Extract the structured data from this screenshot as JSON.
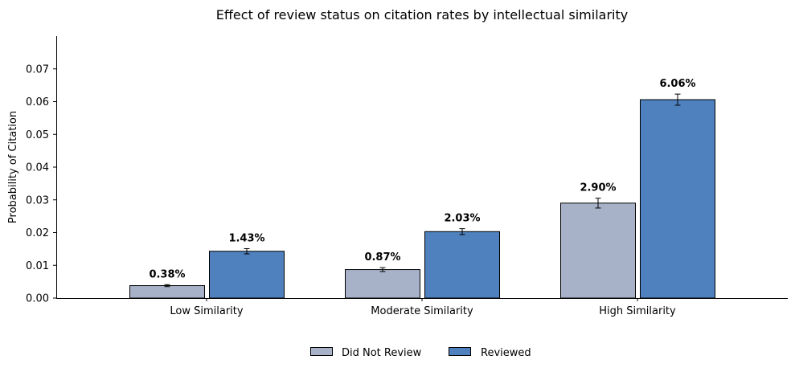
{
  "chart_data": {
    "type": "bar",
    "title": "Effect of review status on citation rates by intellectual similarity",
    "xlabel": "",
    "ylabel": "Probability of Citation",
    "categories": [
      "Low Similarity",
      "Moderate Similarity",
      "High Similarity"
    ],
    "series": [
      {
        "name": "Did Not Review",
        "color": "#a7b2c8",
        "values": [
          0.0038,
          0.0087,
          0.029
        ],
        "errors": [
          0.0003,
          0.0006,
          0.0015
        ],
        "labels": [
          "0.38%",
          "0.87%",
          "2.90%"
        ]
      },
      {
        "name": "Reviewed",
        "color": "#4e81bd",
        "values": [
          0.0143,
          0.0203,
          0.0606
        ],
        "errors": [
          0.0008,
          0.0009,
          0.0017
        ],
        "labels": [
          "1.43%",
          "2.03%",
          "6.06%"
        ]
      }
    ],
    "ylim": [
      0,
      0.08
    ],
    "yticks": [
      "0.00",
      "0.01",
      "0.02",
      "0.03",
      "0.04",
      "0.05",
      "0.06",
      "0.07"
    ],
    "ytick_values": [
      0,
      0.01,
      0.02,
      0.03,
      0.04,
      0.05,
      0.06,
      0.07
    ],
    "grid": false,
    "legend_position": "bottom-center"
  }
}
